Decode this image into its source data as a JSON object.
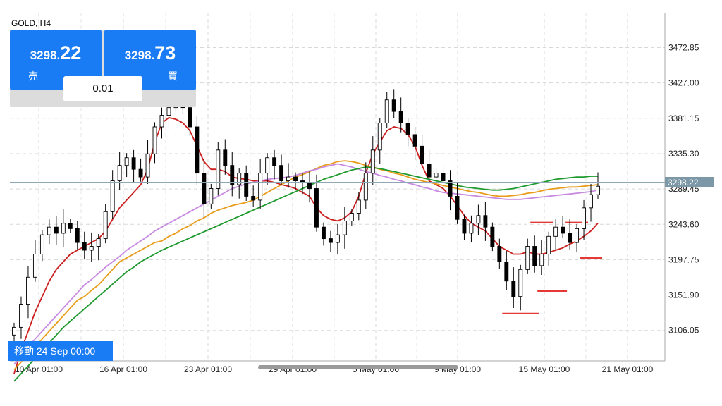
{
  "symbol_label": "GOLD, H4",
  "sell": {
    "price_prefix": "3298.",
    "price_suffix": "22",
    "label": "売"
  },
  "buy": {
    "price_prefix": "3298.",
    "price_suffix": "73",
    "label": "買"
  },
  "lot": "0.01",
  "goto_label": "移動 24 Sep 00:00",
  "chart_data": {
    "type": "line",
    "title": "GOLD, H4",
    "ylim": [
      3067.0,
      3514.0
    ],
    "y_ticks": [
      3472.85,
      3427.0,
      3381.15,
      3335.3,
      3289.45,
      3243.6,
      3197.75,
      3151.9,
      3106.05
    ],
    "x_ticks": [
      "10 Apr 01:00",
      "16 Apr 01:00",
      "23 Apr 01:00",
      "29 Apr 01:00",
      "5 May 01:00",
      "9 May 01:00",
      "15 May 01:00",
      "21 May 01:00"
    ],
    "current_price": 3298.22,
    "current_price_label": "3298.22",
    "candles_close": [
      3110,
      3140,
      3175,
      3205,
      3230,
      3240,
      3232,
      3245,
      3238,
      3220,
      3210,
      3215,
      3225,
      3260,
      3300,
      3320,
      3330,
      3315,
      3305,
      3335,
      3370,
      3385,
      3395,
      3400,
      3395,
      3370,
      3310,
      3270,
      3290,
      3340,
      3320,
      3295,
      3310,
      3280,
      3275,
      3310,
      3330,
      3320,
      3300,
      3305,
      3300,
      3298,
      3290,
      3240,
      3225,
      3220,
      3230,
      3248,
      3258,
      3275,
      3310,
      3340,
      3375,
      3405,
      3390,
      3375,
      3360,
      3345,
      3322,
      3305,
      3310,
      3300,
      3280,
      3250,
      3232,
      3245,
      3255,
      3240,
      3215,
      3195,
      3170,
      3150,
      3185,
      3215,
      3190,
      3205,
      3228,
      3240,
      3232,
      3220,
      3238,
      3265,
      3282,
      3293
    ],
    "series": [
      {
        "name": "",
        "color": "#cc1f1f",
        "values": [
          3050,
          3080,
          3105,
          3130,
          3150,
          3170,
          3185,
          3195,
          3205,
          3210,
          3215,
          3220,
          3225,
          3235,
          3250,
          3265,
          3275,
          3285,
          3295,
          3315,
          3350,
          3375,
          3382,
          3380,
          3375,
          3365,
          3345,
          3325,
          3315,
          3315,
          3312,
          3305,
          3303,
          3302,
          3300,
          3300,
          3300,
          3298,
          3295,
          3293,
          3290,
          3285,
          3280,
          3265,
          3255,
          3250,
          3248,
          3252,
          3260,
          3280,
          3310,
          3335,
          3350,
          3365,
          3370,
          3368,
          3360,
          3345,
          3320,
          3300,
          3295,
          3290,
          3280,
          3268,
          3255,
          3245,
          3240,
          3235,
          3225,
          3215,
          3210,
          3205,
          3205,
          3208,
          3205,
          3205,
          3207,
          3210,
          3213,
          3218,
          3222,
          3228,
          3235,
          3245
        ]
      },
      {
        "name": "",
        "color": "#e89c1a",
        "values": [
          3055,
          3065,
          3075,
          3085,
          3095,
          3105,
          3115,
          3125,
          3135,
          3145,
          3150,
          3158,
          3165,
          3175,
          3185,
          3195,
          3200,
          3205,
          3210,
          3215,
          3220,
          3222,
          3228,
          3232,
          3238,
          3242,
          3248,
          3252,
          3258,
          3262,
          3265,
          3268,
          3270,
          3272,
          3275,
          3280,
          3285,
          3290,
          3295,
          3300,
          3305,
          3308,
          3312,
          3316,
          3320,
          3322,
          3325,
          3326,
          3325,
          3323,
          3320,
          3318,
          3315,
          3313,
          3310,
          3308,
          3305,
          3302,
          3300,
          3298,
          3296,
          3294,
          3292,
          3290,
          3288,
          3286,
          3285,
          3283,
          3281,
          3280,
          3280,
          3281,
          3282,
          3284,
          3285,
          3287,
          3289,
          3290,
          3291,
          3292,
          3292,
          3293,
          3294,
          3295
        ]
      },
      {
        "name": "",
        "color": "#c78ae0",
        "values": [
          3062,
          3072,
          3085,
          3095,
          3105,
          3115,
          3125,
          3135,
          3145,
          3155,
          3165,
          3172,
          3180,
          3188,
          3195,
          3202,
          3210,
          3216,
          3222,
          3228,
          3235,
          3240,
          3245,
          3250,
          3255,
          3260,
          3265,
          3270,
          3275,
          3280,
          3285,
          3290,
          3293,
          3296,
          3298,
          3300,
          3302,
          3303,
          3304,
          3305,
          3307,
          3310,
          3313,
          3315,
          3318,
          3320,
          3322,
          3320,
          3318,
          3315,
          3312,
          3310,
          3307,
          3305,
          3302,
          3300,
          3297,
          3295,
          3292,
          3290,
          3287,
          3285,
          3284,
          3283,
          3282,
          3281,
          3280,
          3279,
          3278,
          3277,
          3276,
          3276,
          3276,
          3277,
          3278,
          3279,
          3280,
          3281,
          3282,
          3283,
          3284,
          3285,
          3286,
          3288
        ]
      },
      {
        "name": "",
        "color": "#1f9a2e",
        "values": [
          3040,
          3050,
          3060,
          3070,
          3080,
          3090,
          3100,
          3110,
          3118,
          3126,
          3134,
          3142,
          3150,
          3158,
          3166,
          3174,
          3182,
          3188,
          3195,
          3200,
          3205,
          3210,
          3214,
          3218,
          3222,
          3226,
          3230,
          3234,
          3238,
          3242,
          3246,
          3250,
          3254,
          3258,
          3262,
          3266,
          3270,
          3274,
          3278,
          3282,
          3286,
          3290,
          3294,
          3298,
          3302,
          3305,
          3308,
          3311,
          3314,
          3316,
          3318,
          3317,
          3316,
          3314,
          3312,
          3310,
          3308,
          3306,
          3304,
          3302,
          3300,
          3298,
          3296,
          3294,
          3292,
          3291,
          3290,
          3289,
          3288,
          3288,
          3289,
          3290,
          3292,
          3294,
          3296,
          3298,
          3300,
          3302,
          3303,
          3304,
          3305,
          3305,
          3306,
          3306
        ]
      }
    ],
    "annotations": [
      {
        "type": "hline",
        "color": "#e53935",
        "price": 3246,
        "x_from": 74,
        "x_to": 76
      },
      {
        "type": "hline",
        "color": "#e53935",
        "price": 3246,
        "x_from": 79,
        "x_to": 81
      },
      {
        "type": "hline",
        "color": "#e53935",
        "price": 3200,
        "x_from": 81,
        "x_to": 83
      },
      {
        "type": "hline",
        "color": "#e53935",
        "price": 3157,
        "x_from": 75,
        "x_to": 78
      },
      {
        "type": "hline",
        "color": "#e53935",
        "price": 3128,
        "x_from": 70,
        "x_to": 74
      }
    ],
    "grid": true
  }
}
